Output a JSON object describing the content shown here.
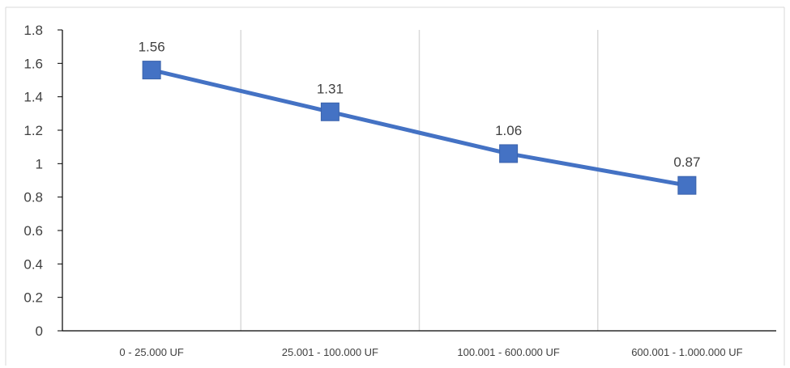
{
  "chart_data": {
    "type": "line",
    "title": "",
    "xlabel": "",
    "ylabel": "",
    "categories": [
      "0 - 25.000 UF",
      "25.001 - 100.000 UF",
      "100.001 - 600.000 UF",
      "600.001 - 1.000.000 UF"
    ],
    "series": [
      {
        "values": [
          1.56,
          1.31,
          1.06,
          0.87
        ],
        "color": "#4472C4",
        "marker": "square"
      }
    ],
    "data_labels": [
      "1.56",
      "1.31",
      "1.06",
      "0.87"
    ],
    "y_ticks": [
      "0",
      "0.2",
      "0.4",
      "0.6",
      "0.8",
      "1",
      "1.2",
      "1.4",
      "1.6",
      "1.8"
    ],
    "ylim": [
      0,
      1.8
    ],
    "grid": "vertical category separators",
    "legend": "none"
  }
}
